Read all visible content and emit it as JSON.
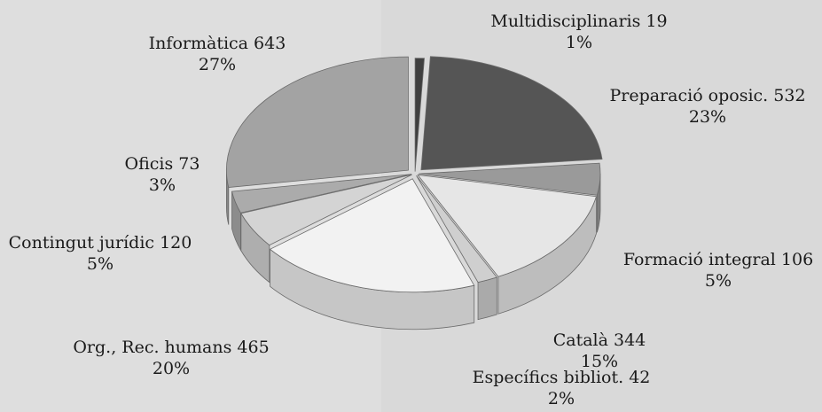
{
  "chart_data": {
    "type": "pie",
    "title": "",
    "style": "3d-exploded-grayscale",
    "slices": [
      {
        "label": "Multidisciplinaris",
        "value": 19,
        "percent_label": "1%",
        "color": "#3f3f3f"
      },
      {
        "label": "Preparació oposic.",
        "value": 532,
        "percent_label": "23%",
        "color": "#555555"
      },
      {
        "label": "Formació integral",
        "value": 106,
        "percent_label": "5%",
        "color": "#9a9a9a"
      },
      {
        "label": "Català",
        "value": 344,
        "percent_label": "15%",
        "color": "#e6e6e6"
      },
      {
        "label": "Específics bibliot.",
        "value": 42,
        "percent_label": "2%",
        "color": "#cfcfcf"
      },
      {
        "label": "Org., Rec. humans",
        "value": 465,
        "percent_label": "20%",
        "color": "#f2f2f2"
      },
      {
        "label": "Contingut jurídic",
        "value": 120,
        "percent_label": "5%",
        "color": "#d4d4d4"
      },
      {
        "label": "Oficis",
        "value": 73,
        "percent_label": "3%",
        "color": "#ababab"
      },
      {
        "label": "Informàtica",
        "value": 643,
        "percent_label": "27%",
        "color": "#a3a3a3"
      }
    ]
  }
}
